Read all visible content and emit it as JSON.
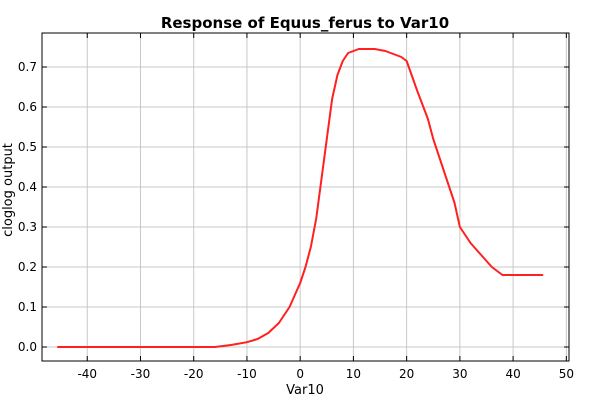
{
  "chart_data": {
    "type": "line",
    "title": "Response of Equus_ferus to Var10",
    "xlabel": "Var10",
    "ylabel": "cloglog output",
    "xlim": [
      -48.5,
      50.5
    ],
    "ylim": [
      -0.035,
      0.785
    ],
    "xticks": [
      -40,
      -30,
      -20,
      -10,
      0,
      10,
      20,
      30,
      40,
      50
    ],
    "yticks": [
      0.0,
      0.1,
      0.2,
      0.3,
      0.4,
      0.5,
      0.6,
      0.7
    ],
    "ytick_labels": [
      "0.0",
      "0.1",
      "0.2",
      "0.3",
      "0.4",
      "0.5",
      "0.6",
      "0.7"
    ],
    "grid": true,
    "line_color": "#ff2020",
    "series": [
      {
        "x": [
          -45.5,
          -40,
          -30,
          -20,
          -16,
          -13,
          -10,
          -8,
          -6,
          -4,
          -2,
          -1,
          0,
          1,
          2,
          3,
          4,
          5,
          6,
          7,
          8,
          9,
          10,
          11,
          12,
          14,
          16,
          18,
          19,
          20,
          22,
          24,
          25,
          26,
          28,
          29,
          30,
          32,
          34,
          36,
          37,
          38,
          40,
          42,
          45.5
        ],
        "y": [
          0.0,
          0.0,
          0.0,
          0.0,
          0.0,
          0.005,
          0.012,
          0.02,
          0.035,
          0.06,
          0.1,
          0.13,
          0.16,
          0.2,
          0.25,
          0.32,
          0.42,
          0.52,
          0.62,
          0.68,
          0.715,
          0.735,
          0.74,
          0.745,
          0.745,
          0.745,
          0.74,
          0.73,
          0.725,
          0.715,
          0.64,
          0.57,
          0.52,
          0.48,
          0.4,
          0.36,
          0.3,
          0.26,
          0.23,
          0.2,
          0.19,
          0.18,
          0.18,
          0.18,
          0.18
        ]
      }
    ]
  }
}
